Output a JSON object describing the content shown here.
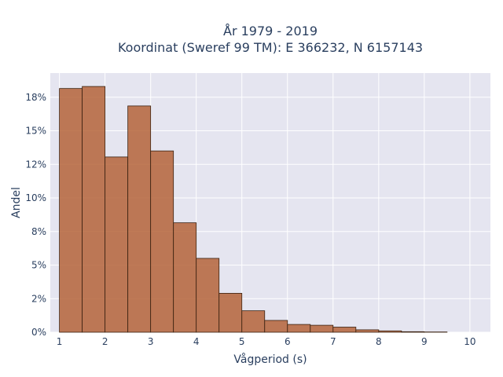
{
  "chart_data": {
    "type": "bar",
    "title_lines": [
      "År 1979 - 2019",
      "Koordinat (Sweref 99 TM): E 366232, N 6157143"
    ],
    "xlabel": "Vågperiod (s)",
    "ylabel": "Andel",
    "xlim": [
      0.8,
      10.45
    ],
    "ylim": [
      0,
      19.3
    ],
    "x_ticks": [
      1,
      2,
      3,
      4,
      5,
      6,
      7,
      8,
      9,
      10
    ],
    "x_tick_labels": [
      "1",
      "2",
      "3",
      "4",
      "5",
      "6",
      "7",
      "8",
      "9",
      "10"
    ],
    "y_ticks": [
      0,
      2.5,
      5,
      7.5,
      10,
      12.5,
      15,
      17.5
    ],
    "y_tick_labels": [
      "0%",
      "2%",
      "5%",
      "8%",
      "10%",
      "12%",
      "15%",
      "18%"
    ],
    "bin_width": 0.5,
    "bins": [
      {
        "x0": 1.0,
        "value": 18.15
      },
      {
        "x0": 1.5,
        "value": 18.3
      },
      {
        "x0": 2.0,
        "value": 13.05
      },
      {
        "x0": 2.5,
        "value": 16.85
      },
      {
        "x0": 3.0,
        "value": 13.5
      },
      {
        "x0": 3.5,
        "value": 8.15
      },
      {
        "x0": 4.0,
        "value": 5.5
      },
      {
        "x0": 4.5,
        "value": 2.9
      },
      {
        "x0": 5.0,
        "value": 1.6
      },
      {
        "x0": 5.5,
        "value": 0.88
      },
      {
        "x0": 6.0,
        "value": 0.58
      },
      {
        "x0": 6.5,
        "value": 0.52
      },
      {
        "x0": 7.0,
        "value": 0.38
      },
      {
        "x0": 7.5,
        "value": 0.18
      },
      {
        "x0": 8.0,
        "value": 0.1
      },
      {
        "x0": 8.5,
        "value": 0.04
      },
      {
        "x0": 9.0,
        "value": 0.02
      },
      {
        "x0": 9.5,
        "value": 0.0
      }
    ],
    "grid": true,
    "colors": {
      "plot_bg": "#e5e5f0",
      "bar": "#b5643a",
      "bar_edge": "#3a2110",
      "text": "#2a3f5f"
    }
  }
}
